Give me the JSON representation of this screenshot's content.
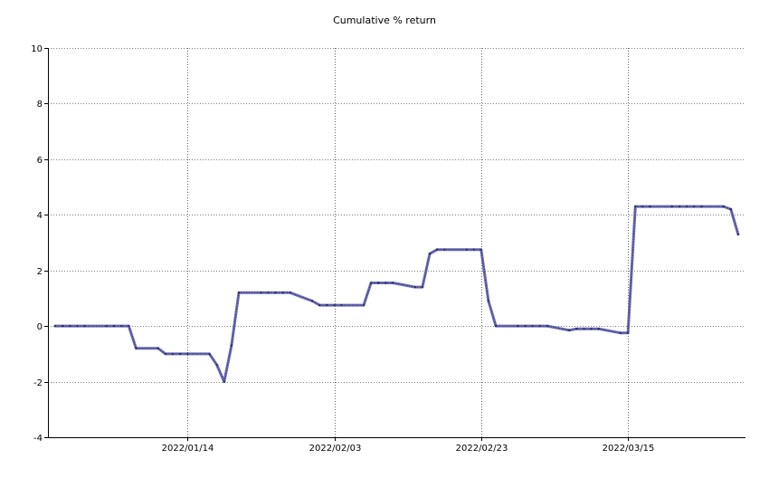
{
  "chart_data": {
    "type": "line",
    "title": "Cumulative % return",
    "xlabel": "",
    "ylabel": "",
    "ylim": [
      -4,
      10
    ],
    "y_ticks": [
      -4,
      -2,
      0,
      2,
      4,
      6,
      8,
      10
    ],
    "x_tick_labels": [
      "2022/01/14",
      "2022/02/03",
      "2022/02/23",
      "2022/03/15"
    ],
    "x_tick_dates": [
      "2022-01-14",
      "2022-02-03",
      "2022-02-23",
      "2022-03-15"
    ],
    "xlim": [
      "2021-12-26",
      "2022-03-31"
    ],
    "grid": true,
    "grid_style": "dotted",
    "series": [
      {
        "color": "#5a5aa8",
        "x": [
          "2021-12-27",
          "2021-12-28",
          "2021-12-29",
          "2021-12-30",
          "2021-12-31",
          "2022-01-03",
          "2022-01-04",
          "2022-01-05",
          "2022-01-06",
          "2022-01-07",
          "2022-01-10",
          "2022-01-11",
          "2022-01-12",
          "2022-01-13",
          "2022-01-14",
          "2022-01-17",
          "2022-01-18",
          "2022-01-19",
          "2022-01-20",
          "2022-01-21",
          "2022-01-24",
          "2022-01-25",
          "2022-01-26",
          "2022-01-27",
          "2022-01-28",
          "2022-01-31",
          "2022-02-01",
          "2022-02-02",
          "2022-02-03",
          "2022-02-04",
          "2022-02-07",
          "2022-02-08",
          "2022-02-09",
          "2022-02-10",
          "2022-02-11",
          "2022-02-14",
          "2022-02-15",
          "2022-02-16",
          "2022-02-17",
          "2022-02-18",
          "2022-02-21",
          "2022-02-22",
          "2022-02-23",
          "2022-02-24",
          "2022-02-25",
          "2022-02-28",
          "2022-03-01",
          "2022-03-02",
          "2022-03-03",
          "2022-03-04",
          "2022-03-07",
          "2022-03-08",
          "2022-03-09",
          "2022-03-10",
          "2022-03-11",
          "2022-03-14",
          "2022-03-15",
          "2022-03-16",
          "2022-03-17",
          "2022-03-18",
          "2022-03-21",
          "2022-03-22",
          "2022-03-23",
          "2022-03-24",
          "2022-03-25",
          "2022-03-28",
          "2022-03-29",
          "2022-03-30"
        ],
        "values": [
          0.0,
          0.0,
          0.0,
          0.0,
          0.0,
          0.0,
          0.0,
          0.0,
          0.0,
          -0.8,
          -0.8,
          -1.0,
          -1.0,
          -1.0,
          -1.0,
          -1.0,
          -1.4,
          -2.0,
          -0.7,
          1.2,
          1.2,
          1.2,
          1.2,
          1.2,
          1.2,
          0.9,
          0.75,
          0.75,
          0.75,
          0.75,
          0.75,
          1.55,
          1.55,
          1.55,
          1.55,
          1.4,
          1.4,
          2.6,
          2.75,
          2.75,
          2.75,
          2.75,
          2.75,
          0.9,
          0.0,
          0.0,
          0.0,
          0.0,
          0.0,
          0.0,
          -0.15,
          -0.1,
          -0.1,
          -0.1,
          -0.1,
          -0.25,
          -0.25,
          4.3,
          4.3,
          4.3,
          4.3,
          4.3,
          4.3,
          4.3,
          4.3,
          4.3,
          4.2,
          3.3
        ]
      }
    ]
  }
}
